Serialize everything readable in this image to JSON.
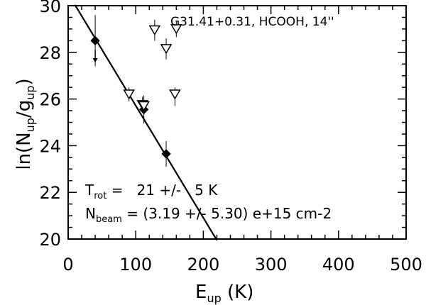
{
  "chart_data": {
    "type": "scatter",
    "title": "G31.41+0.31, HCOOH, 14''",
    "xlabel": {
      "main": "E",
      "sub": "up",
      "unit": " (K)"
    },
    "ylabel": {
      "prefix": "ln(N",
      "sub1": "up",
      "mid": "/g",
      "sub2": "up",
      "suffix": ")"
    },
    "xlim": [
      0,
      500
    ],
    "ylim": [
      20,
      30
    ],
    "x_ticks": [
      0,
      100,
      200,
      300,
      400,
      500
    ],
    "y_ticks": [
      20,
      22,
      24,
      26,
      28,
      30
    ],
    "grid": false,
    "series": [
      {
        "marker": "filled-diamond",
        "points": [
          {
            "x": 40,
            "y": 28.5,
            "yerr_low": 1.1,
            "yerr_high": 1.1
          },
          {
            "x": 112,
            "y": 25.55,
            "yerr_low": 0.6,
            "yerr_high": 0.6
          },
          {
            "x": 145,
            "y": 23.65,
            "yerr_low": 0.55,
            "yerr_high": 0.55
          }
        ]
      },
      {
        "marker": "open-triangle-down",
        "points": [
          {
            "x": 90,
            "y": 26.2,
            "yerr_low": 0.3,
            "yerr_high": 0.3
          },
          {
            "x": 110,
            "y": 25.75,
            "yerr_low": 0.35,
            "yerr_high": 0.35
          },
          {
            "x": 112,
            "y": 25.7,
            "yerr_low": 0.3,
            "yerr_high": 0.3
          },
          {
            "x": 128,
            "y": 28.95,
            "yerr_low": 0.45,
            "yerr_high": 0.45
          },
          {
            "x": 145,
            "y": 28.15,
            "yerr_low": 0.45,
            "yerr_high": 0.45
          },
          {
            "x": 160,
            "y": 29.0,
            "yerr_low": 0.35,
            "yerr_high": 0.35
          },
          {
            "x": 158,
            "y": 26.2,
            "yerr_low": 0.5,
            "yerr_high": 0.3
          }
        ]
      }
    ],
    "upper_limit_arrow": {
      "x": 40,
      "y_from": 28.1,
      "y_to": 27.6
    },
    "fit_line": {
      "x_from": 10,
      "y_from": 30.04,
      "x_to": 220,
      "y_to": 19.95
    },
    "annotations": {
      "trot": {
        "symbol": "T",
        "sub": "rot",
        "text": " =   21 +/-   5 K"
      },
      "nbeam": {
        "symbol": "N",
        "sub": "beam",
        "text": " = (3.19 +/- 5.30) e+15 cm-2"
      }
    }
  }
}
